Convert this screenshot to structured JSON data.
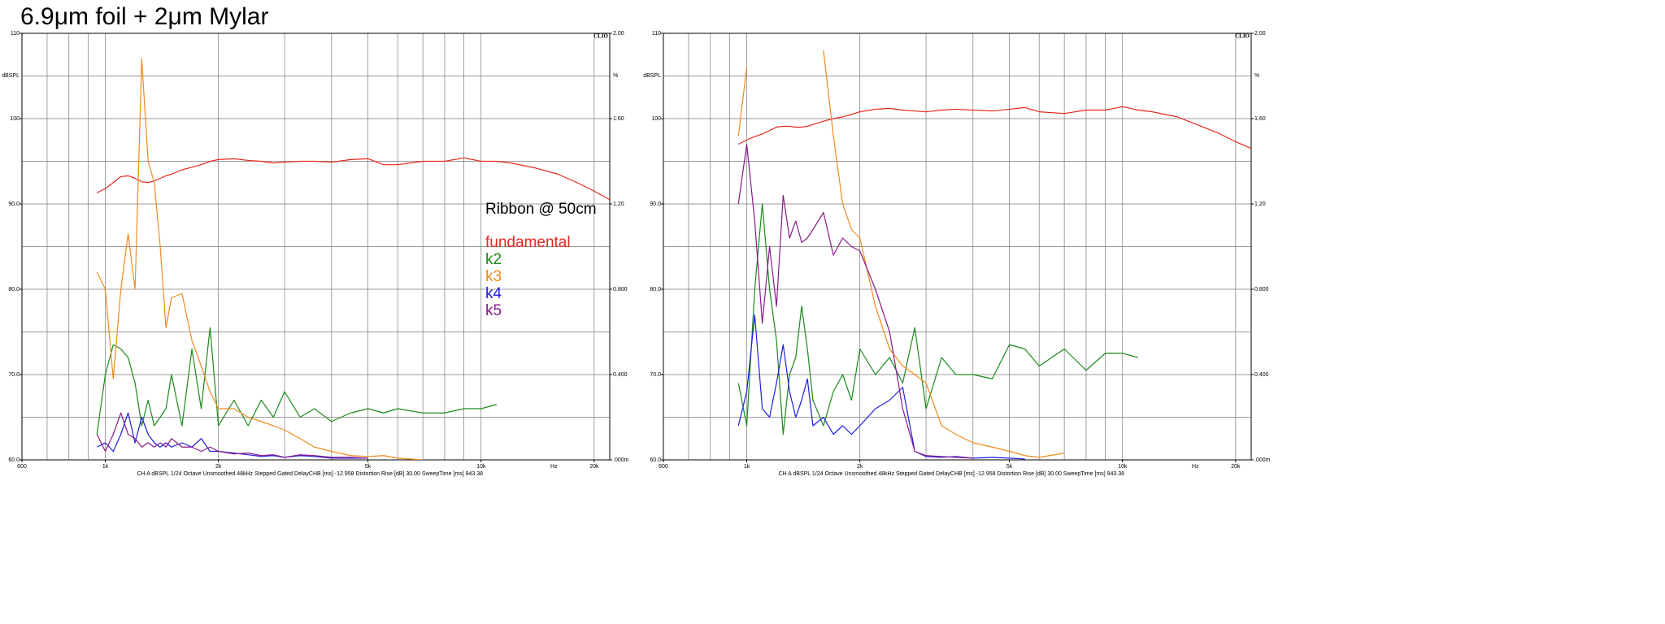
{
  "title": "6.9μm foil + 2μm Mylar",
  "chart_data": [
    {
      "type": "line",
      "logo": "CLIO",
      "ylabel": "dBSPL",
      "y2label": "%",
      "xlabel": "Hz",
      "footer": "CH A   dBSPL   1/24 Octave   Unsmoothed   48kHz   Stepped   Gated   DelayCHB [ms] -12.958   Distortion Rise [dB] 30.00   SweepTime [ms] 943.38",
      "annotation": "Ribbon @ 50cm",
      "legend": true,
      "log_x": true,
      "xlim": [
        600,
        22000
      ],
      "xticks": [
        600,
        {
          "value": 1000,
          "label": "1k"
        },
        {
          "value": 2000,
          "label": "2k"
        },
        {
          "value": 5000,
          "label": "5k"
        },
        {
          "value": 10000,
          "label": "10k"
        },
        {
          "value": 20000,
          "label": "20k"
        }
      ],
      "xgrid": [
        700,
        800,
        900,
        1000,
        2000,
        3000,
        4000,
        5000,
        6000,
        7000,
        8000,
        9000,
        10000,
        20000
      ],
      "ylim": [
        60,
        110
      ],
      "yticks": [
        {
          "value": 60,
          "label": "60.0"
        },
        {
          "value": 70,
          "label": "70.0"
        },
        {
          "value": 80,
          "label": "80.0"
        },
        {
          "value": 90,
          "label": "90.0"
        },
        100,
        110
      ],
      "ygrid": [
        65,
        70,
        75,
        80,
        85,
        90,
        95,
        100,
        105
      ],
      "y2lim": [
        0,
        2
      ],
      "y2ticks": [
        {
          "value": 0,
          "label": ".000m"
        },
        {
          "value": 0.4,
          "label": "0.400"
        },
        {
          "value": 0.8,
          "label": "0.800"
        },
        {
          "value": 1.2,
          "label": "1.20"
        },
        {
          "value": 1.6,
          "label": "1.60"
        },
        {
          "value": 2,
          "label": "2.00"
        }
      ],
      "x": [
        950,
        1000,
        1050,
        1100,
        1150,
        1200,
        1250,
        1300,
        1350,
        1400,
        1450,
        1500,
        1600,
        1700,
        1800,
        1900,
        2000,
        2200,
        2400,
        2600,
        2800,
        3000,
        3300,
        3600,
        4000,
        4500,
        5000,
        5500,
        6000,
        7000,
        8000,
        9000,
        10000,
        11000,
        12000,
        14000,
        16000,
        18000,
        20000,
        22000
      ],
      "series": [
        {
          "name": "fundamental",
          "color": "#e8281e",
          "values": [
            91.3,
            91.8,
            92.5,
            93.2,
            93.3,
            93,
            92.6,
            92.5,
            92.7,
            93,
            93.3,
            93.5,
            94,
            94.3,
            94.6,
            95,
            95.2,
            95.3,
            95.1,
            95,
            94.8,
            94.9,
            95,
            95,
            94.9,
            95.2,
            95.3,
            94.6,
            94.6,
            95,
            95,
            95.4,
            95,
            95,
            94.8,
            94.2,
            93.5,
            92.5,
            91.5,
            90.5
          ]
        },
        {
          "name": "k2",
          "color": "#1a8a1a",
          "values": [
            63,
            70,
            73.5,
            73,
            72,
            69,
            64,
            67,
            64,
            65,
            66,
            70,
            64,
            73,
            66,
            75.5,
            64,
            67,
            64,
            67,
            65,
            68,
            65,
            66,
            64.5,
            65.5,
            66,
            65.5,
            66,
            65.5,
            65.5,
            66,
            66,
            66.5,
            null,
            null,
            null,
            null,
            null,
            null
          ]
        },
        {
          "name": "k3",
          "color": "#f08a1e",
          "values": [
            82,
            80,
            69.5,
            80,
            86.5,
            80,
            107,
            95,
            92.5,
            85,
            75.5,
            79,
            79.5,
            74,
            71,
            68,
            66,
            66,
            65,
            64.5,
            64,
            63.5,
            62.5,
            61.5,
            61,
            60.5,
            60.4,
            60.5,
            60.2,
            60,
            null,
            null,
            null,
            null,
            null,
            null,
            null,
            null,
            null,
            null
          ]
        },
        {
          "name": "k4",
          "color": "#1e1ee0",
          "values": [
            61.5,
            62,
            61,
            63,
            65.5,
            62,
            65,
            63,
            62,
            61.5,
            62,
            61.5,
            62,
            61.5,
            62.5,
            61,
            61,
            60.8,
            60.6,
            60.4,
            60.5,
            60.3,
            60.5,
            60.4,
            60.2,
            60.2,
            60.2,
            null,
            null,
            null,
            null,
            null,
            null,
            null,
            null,
            null,
            null,
            null,
            null,
            null
          ]
        },
        {
          "name": "k5",
          "color": "#8a1a8a",
          "values": [
            63,
            61,
            63,
            65.5,
            63,
            62.5,
            61.5,
            62,
            61.5,
            62,
            61.5,
            62.5,
            61.5,
            61.5,
            61,
            61.5,
            61,
            60.7,
            60.8,
            60.5,
            60.6,
            60.3,
            60.6,
            60.5,
            60.3,
            60.3,
            60.2,
            null,
            null,
            null,
            null,
            null,
            null,
            null,
            null,
            null,
            null,
            null,
            null,
            null
          ]
        }
      ]
    },
    {
      "type": "line",
      "logo": "CLIO",
      "ylabel": "dBSPL",
      "y2label": "%",
      "xlabel": "Hz",
      "footer": "CH A   dBSPL   1/24 Octave   Unsmoothed   48kHz   Stepped   Gated   DelayCHB [ms] -12.958   Distortion Rise [dB] 30.00   SweepTime [ms] 943.38",
      "legend": false,
      "log_x": true,
      "xlim": [
        600,
        22000
      ],
      "xticks": [
        600,
        {
          "value": 1000,
          "label": "1k"
        },
        {
          "value": 2000,
          "label": "2k"
        },
        {
          "value": 5000,
          "label": "5k"
        },
        {
          "value": 10000,
          "label": "10k"
        },
        {
          "value": 20000,
          "label": "20k"
        }
      ],
      "xgrid": [
        700,
        800,
        900,
        1000,
        2000,
        3000,
        4000,
        5000,
        6000,
        7000,
        8000,
        9000,
        10000,
        20000
      ],
      "ylim": [
        60,
        110
      ],
      "yticks": [
        {
          "value": 60,
          "label": "60.0"
        },
        {
          "value": 70,
          "label": "70.0"
        },
        {
          "value": 80,
          "label": "80.0"
        },
        {
          "value": 90,
          "label": "90.0"
        },
        100,
        110
      ],
      "ygrid": [
        65,
        70,
        75,
        80,
        85,
        90,
        95,
        100,
        105
      ],
      "y2lim": [
        0,
        2
      ],
      "y2ticks": [
        {
          "value": 0,
          "label": ".000m"
        },
        {
          "value": 0.4,
          "label": "0.400"
        },
        {
          "value": 0.8,
          "label": "0.800"
        },
        {
          "value": 1.2,
          "label": "1.20"
        },
        {
          "value": 1.6,
          "label": "1.60"
        },
        {
          "value": 2,
          "label": "2.00"
        }
      ],
      "x": [
        950,
        1000,
        1050,
        1100,
        1150,
        1200,
        1250,
        1300,
        1350,
        1400,
        1450,
        1500,
        1600,
        1700,
        1800,
        1900,
        2000,
        2200,
        2400,
        2600,
        2800,
        3000,
        3300,
        3600,
        4000,
        4500,
        5000,
        5500,
        6000,
        7000,
        8000,
        9000,
        10000,
        11000,
        12000,
        14000,
        16000,
        18000,
        20000,
        22000
      ],
      "series": [
        {
          "color": "#e8281e",
          "values": [
            97,
            97.5,
            97.9,
            98.2,
            98.6,
            99,
            99.1,
            99.1,
            99,
            99,
            99.1,
            99.3,
            99.7,
            100,
            100.2,
            100.5,
            100.8,
            101.1,
            101.2,
            101,
            100.9,
            100.8,
            101,
            101.1,
            101,
            100.9,
            101.1,
            101.3,
            100.8,
            100.6,
            101,
            101,
            101.4,
            101,
            100.8,
            100.2,
            99.2,
            98.3,
            97.3,
            96.5
          ]
        },
        {
          "color": "#1a8a1a",
          "values": [
            69,
            64,
            80,
            90,
            80,
            74,
            63,
            70,
            72,
            78,
            73,
            67,
            64,
            68,
            70,
            67,
            73,
            70,
            72,
            69,
            75.5,
            66,
            72,
            70,
            70,
            69.5,
            73.5,
            73,
            71,
            73,
            70.5,
            72.5,
            72.5,
            72,
            null,
            null,
            null,
            null,
            null,
            null
          ]
        },
        {
          "color": "#f08a1e",
          "values": [
            98,
            106,
            null,
            null,
            null,
            null,
            null,
            null,
            null,
            null,
            null,
            null,
            108,
            98,
            90,
            87,
            86,
            78,
            73,
            71,
            70,
            69,
            64,
            63,
            62,
            61.5,
            61,
            60.5,
            60.3,
            60.8,
            null,
            null,
            null,
            null,
            null,
            null,
            null,
            null,
            null,
            null
          ]
        },
        {
          "color": "#1e1ee0",
          "values": [
            64,
            68,
            77,
            66,
            65,
            69,
            73.5,
            68,
            65,
            67,
            69.5,
            64,
            65,
            63,
            64,
            63,
            64,
            66,
            67,
            68.5,
            61,
            60.4,
            60.3,
            60.4,
            60.2,
            60.3,
            60.2,
            60.1,
            null,
            null,
            null,
            null,
            null,
            null,
            null,
            null,
            null,
            null,
            null,
            null
          ]
        },
        {
          "color": "#8a1a8a",
          "values": [
            90,
            97,
            88,
            76,
            85,
            78,
            91,
            86,
            88,
            85.5,
            86,
            87,
            89,
            84,
            86,
            85,
            84.5,
            80,
            75,
            66,
            61,
            60.5,
            60.4,
            60.3,
            60.2,
            null,
            null,
            null,
            null,
            null,
            null,
            null,
            null,
            null,
            null,
            null,
            null,
            null,
            null,
            null
          ]
        }
      ]
    }
  ]
}
